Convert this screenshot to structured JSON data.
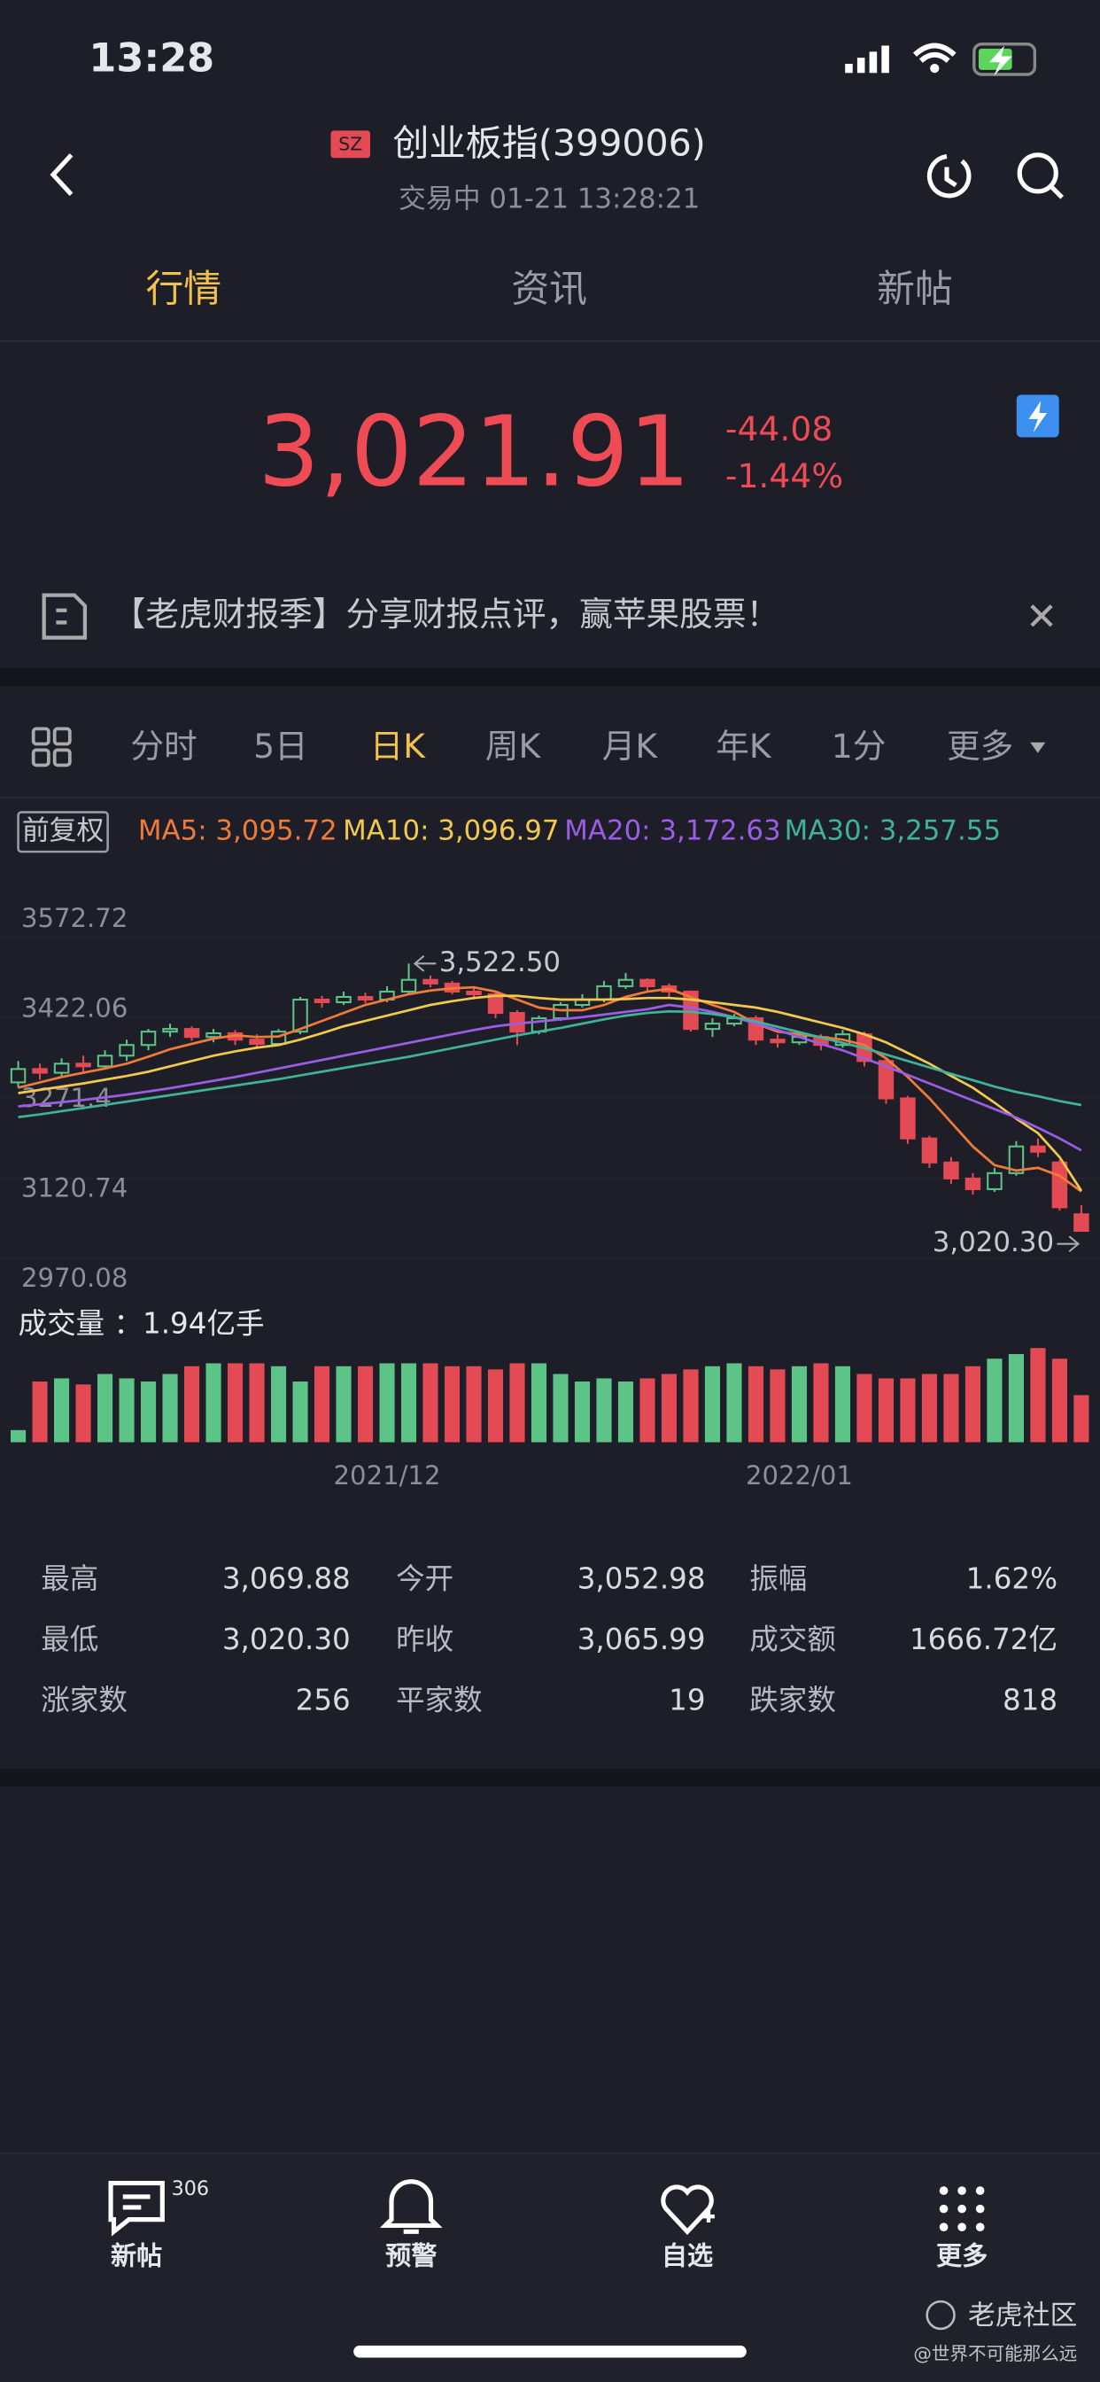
{
  "status": {
    "time": "13:28"
  },
  "header": {
    "exchange": "SZ",
    "title": "创业板指(399006)",
    "subtitle": "交易中 01-21 13:28:21"
  },
  "tabs": [
    "行情",
    "资讯",
    "新帖"
  ],
  "quote": {
    "price": "3,021.91",
    "change": "-44.08",
    "change_pct": "-1.44%"
  },
  "banner": {
    "text": "【老虎财报季】分享财报点评，赢苹果股票！"
  },
  "periods": [
    "分时",
    "5日",
    "日K",
    "周K",
    "月K",
    "年K",
    "1分",
    "更多"
  ],
  "adjust": "前复权",
  "chart_data": {
    "type": "candlestick",
    "categories": [
      null,
      null,
      null,
      null,
      null,
      null,
      null,
      null,
      null,
      null,
      null,
      null,
      null,
      null,
      null,
      null,
      null,
      "2021/12",
      null,
      null,
      null,
      null,
      null,
      null,
      null,
      null,
      null,
      null,
      null,
      null,
      null,
      null,
      null,
      null,
      null,
      null,
      "2022/01",
      null,
      null,
      null,
      null,
      null,
      null,
      null,
      null,
      null,
      null,
      null,
      null,
      null
    ],
    "open": [
      3300,
      3325,
      3318,
      3335,
      3330,
      3350,
      3370,
      3395,
      3400,
      3385,
      3392,
      3380,
      3372,
      3395,
      3455,
      3450,
      3460,
      3455,
      3470,
      3492,
      3485,
      3470,
      3465,
      3430,
      3395,
      3420,
      3445,
      3455,
      3480,
      3492,
      3480,
      3470,
      3400,
      3410,
      3420,
      3380,
      3375,
      3385,
      3370,
      3390,
      3340,
      3270,
      3195,
      3150,
      3120,
      3100,
      3130,
      3180,
      3150,
      3052.98
    ],
    "close": [
      3325,
      3318,
      3335,
      3330,
      3350,
      3370,
      3395,
      3400,
      3385,
      3392,
      3380,
      3372,
      3395,
      3455,
      3450,
      3460,
      3455,
      3470,
      3492,
      3485,
      3470,
      3465,
      3430,
      3395,
      3420,
      3445,
      3455,
      3480,
      3492,
      3480,
      3470,
      3400,
      3410,
      3420,
      3380,
      3375,
      3385,
      3370,
      3390,
      3340,
      3270,
      3195,
      3150,
      3120,
      3100,
      3130,
      3180,
      3170,
      3065.99,
      3021.91
    ],
    "high": [
      3340,
      3335,
      3345,
      3350,
      3360,
      3380,
      3400,
      3410,
      3405,
      3400,
      3398,
      3390,
      3400,
      3460,
      3462,
      3470,
      3468,
      3480,
      3522.5,
      3500,
      3490,
      3478,
      3470,
      3435,
      3425,
      3450,
      3465,
      3490,
      3505,
      3495,
      3485,
      3472,
      3420,
      3428,
      3425,
      3390,
      3395,
      3390,
      3398,
      3395,
      3345,
      3275,
      3200,
      3160,
      3130,
      3140,
      3190,
      3195,
      3155,
      3069.88
    ],
    "low": [
      3290,
      3305,
      3310,
      3320,
      3325,
      3340,
      3360,
      3385,
      3378,
      3375,
      3370,
      3365,
      3368,
      3390,
      3440,
      3445,
      3448,
      3450,
      3465,
      3478,
      3465,
      3455,
      3420,
      3370,
      3390,
      3415,
      3440,
      3450,
      3475,
      3470,
      3460,
      3395,
      3385,
      3405,
      3370,
      3365,
      3370,
      3360,
      3365,
      3330,
      3260,
      3185,
      3140,
      3110,
      3090,
      3095,
      3125,
      3160,
      3060,
      3020.3
    ],
    "series": [
      {
        "name": "MA5",
        "legend": "MA5: 3,095.72",
        "color": "#ef7a3a",
        "values": [
          3290,
          3300,
          3310,
          3318,
          3326,
          3335,
          3348,
          3362,
          3372,
          3382,
          3388,
          3385,
          3386,
          3400,
          3415,
          3430,
          3445,
          3455,
          3465,
          3472,
          3476,
          3478,
          3470,
          3455,
          3440,
          3435,
          3435,
          3445,
          3460,
          3470,
          3475,
          3460,
          3445,
          3432,
          3410,
          3395,
          3390,
          3385,
          3380,
          3370,
          3345,
          3310,
          3270,
          3225,
          3180,
          3145,
          3135,
          3140,
          3125,
          3095.72
        ]
      },
      {
        "name": "MA10",
        "legend": "MA10: 3,096.97",
        "color": "#f2c94c",
        "values": [
          3280,
          3286,
          3292,
          3298,
          3305,
          3312,
          3320,
          3330,
          3340,
          3350,
          3358,
          3365,
          3370,
          3380,
          3392,
          3405,
          3415,
          3425,
          3435,
          3445,
          3452,
          3458,
          3462,
          3462,
          3458,
          3455,
          3455,
          3455,
          3456,
          3458,
          3458,
          3455,
          3450,
          3445,
          3440,
          3432,
          3422,
          3412,
          3402,
          3390,
          3375,
          3355,
          3335,
          3312,
          3290,
          3262,
          3232,
          3205,
          3160,
          3096.97
        ]
      },
      {
        "name": "MA20",
        "legend": "MA20: 3,172.63",
        "color": "#9b5de5",
        "values": [
          3255,
          3259,
          3263,
          3267,
          3272,
          3277,
          3283,
          3289,
          3296,
          3303,
          3310,
          3318,
          3326,
          3334,
          3342,
          3350,
          3358,
          3366,
          3374,
          3382,
          3390,
          3398,
          3405,
          3410,
          3414,
          3418,
          3422,
          3427,
          3432,
          3437,
          3445,
          3440,
          3432,
          3422,
          3410,
          3398,
          3385,
          3372,
          3360,
          3345,
          3330,
          3314,
          3298,
          3282,
          3266,
          3250,
          3234,
          3215,
          3195,
          3172.63
        ]
      },
      {
        "name": "MA30",
        "legend": "MA30: 3,257.55",
        "color": "#3fb39a",
        "values": [
          3235,
          3240,
          3246,
          3252,
          3258,
          3264,
          3270,
          3276,
          3282,
          3288,
          3294,
          3300,
          3306,
          3313,
          3320,
          3327,
          3334,
          3341,
          3348,
          3356,
          3364,
          3372,
          3380,
          3388,
          3395,
          3402,
          3410,
          3418,
          3425,
          3430,
          3433,
          3432,
          3428,
          3422,
          3414,
          3404,
          3394,
          3384,
          3374,
          3364,
          3352,
          3340,
          3328,
          3316,
          3304,
          3292,
          3282,
          3274,
          3265,
          3257.55
        ]
      }
    ],
    "ylim": [
      2970.08,
      3572.72
    ],
    "yticks": [
      3572.72,
      3422.06,
      3271.4,
      3120.74,
      2970.08
    ],
    "up_color": "#5cc487",
    "down_color": "#e34a54",
    "annotations": [
      {
        "text": "3,522.50",
        "value": 3522.5,
        "of": "high"
      },
      {
        "text": "3,020.30",
        "value": 3020.3,
        "of": "low"
      }
    ],
    "volume_label": "成交量 ：1.94亿手",
    "volume": [
      0.5,
      2.5,
      2.63,
      2.38,
      2.81,
      2.63,
      2.5,
      2.81,
      3.13,
      3.25,
      3.25,
      3.25,
      3.13,
      2.5,
      3.13,
      3.13,
      3.13,
      3.25,
      3.25,
      3.25,
      3.13,
      3.13,
      3,
      3.25,
      3.25,
      2.81,
      2.5,
      2.63,
      2.5,
      2.63,
      2.81,
      3,
      3.13,
      3.25,
      3.13,
      3,
      3.13,
      3.25,
      3.13,
      2.81,
      2.63,
      2.63,
      2.81,
      2.81,
      3.13,
      3.44,
      3.63,
      3.88,
      3.44,
      1.94
    ],
    "volume_ylim": [
      0,
      4
    ]
  },
  "stats": [
    [
      {
        "label": "最高",
        "value": "3,069.88"
      },
      {
        "label": "今开",
        "value": "3,052.98"
      },
      {
        "label": "振幅",
        "value": "1.62%"
      }
    ],
    [
      {
        "label": "最低",
        "value": "3,020.30"
      },
      {
        "label": "昨收",
        "value": "3,065.99"
      },
      {
        "label": "成交额",
        "value": "1666.72亿"
      }
    ],
    [
      {
        "label": "涨家数",
        "value": "256"
      },
      {
        "label": "平家数",
        "value": "19"
      },
      {
        "label": "跌家数",
        "value": "818"
      }
    ]
  ],
  "nav": [
    {
      "label": "新帖",
      "badge": 306
    },
    {
      "label": "预警"
    },
    {
      "label": "自选"
    },
    {
      "label": "更多"
    }
  ],
  "watermark": {
    "brand": "老虎社区",
    "user": "@世界不可能那么远"
  }
}
